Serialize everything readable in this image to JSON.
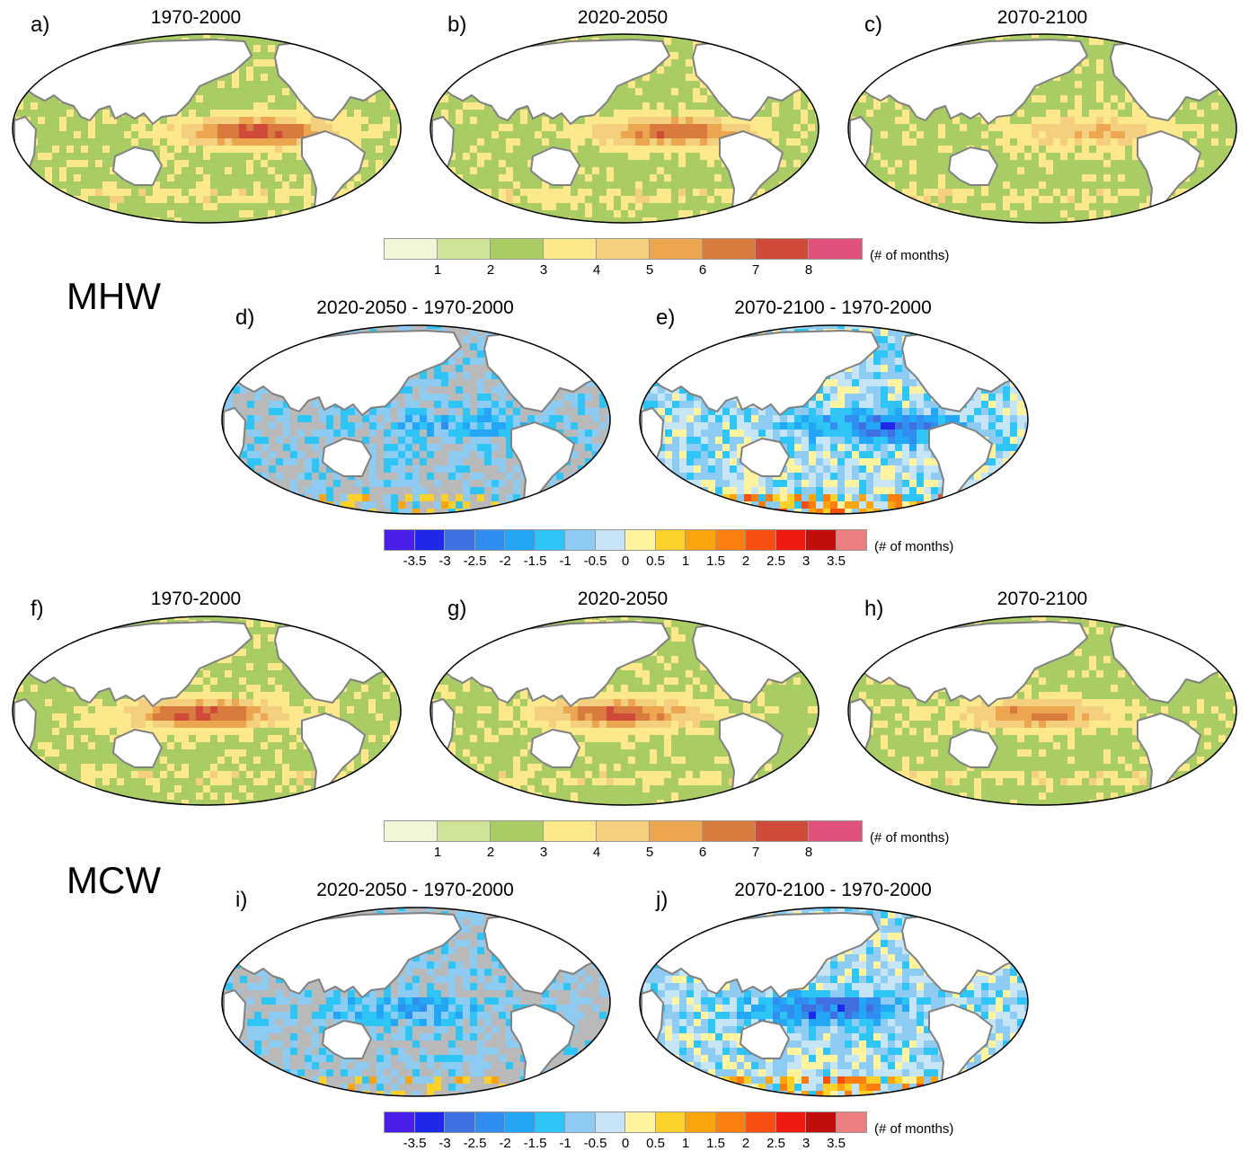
{
  "sections": {
    "mhw": "MHW",
    "mcw": "MCW"
  },
  "panels": [
    {
      "id": "a",
      "label": "a)",
      "title": "1970-2000",
      "type": "abs",
      "intensity": 1.0,
      "warm_pool": "east"
    },
    {
      "id": "b",
      "label": "b)",
      "title": "2020-2050",
      "type": "abs",
      "intensity": 0.9,
      "warm_pool": "east"
    },
    {
      "id": "c",
      "label": "c)",
      "title": "2070-2100",
      "type": "abs",
      "intensity": 0.55,
      "warm_pool": "east"
    },
    {
      "id": "d",
      "label": "d)",
      "title": "2020-2050 - 1970-2000",
      "type": "diff",
      "intensity": 0.4,
      "warm_pool": "east"
    },
    {
      "id": "e",
      "label": "e)",
      "title": "2070-2100 - 1970-2000",
      "type": "diff",
      "intensity": 1.0,
      "warm_pool": "east"
    },
    {
      "id": "f",
      "label": "f)",
      "title": "1970-2000",
      "type": "abs",
      "intensity": 1.0,
      "warm_pool": "central"
    },
    {
      "id": "g",
      "label": "g)",
      "title": "2020-2050",
      "type": "abs",
      "intensity": 0.95,
      "warm_pool": "central"
    },
    {
      "id": "h",
      "label": "h)",
      "title": "2070-2100",
      "type": "abs",
      "intensity": 0.75,
      "warm_pool": "central"
    },
    {
      "id": "i",
      "label": "i)",
      "title": "2020-2050 - 1970-2000",
      "type": "diff",
      "intensity": 0.5,
      "warm_pool": "central"
    },
    {
      "id": "j",
      "label": "j)",
      "title": "2070-2100 - 1970-2000",
      "type": "diff",
      "intensity": 1.0,
      "warm_pool": "central"
    }
  ],
  "colorbars": {
    "abs": {
      "colors": [
        "#f2f5d6",
        "#cfe39a",
        "#a9cc65",
        "#fde98b",
        "#f4cf7f",
        "#eca64f",
        "#d97a3e",
        "#d04a3a",
        "#e0507a"
      ],
      "ticks": [
        "1",
        "2",
        "3",
        "4",
        "5",
        "6",
        "7",
        "8"
      ],
      "unit": "(# of months)"
    },
    "diff": {
      "colors": [
        "#4a1ee8",
        "#1f28e8",
        "#3f6fe0",
        "#2f8ef0",
        "#22a6f5",
        "#2fc4f6",
        "#8dcbf2",
        "#c5e5f7",
        "#fff3a0",
        "#fcd12a",
        "#fca40b",
        "#fc7e0f",
        "#f84e10",
        "#f01b10",
        "#c20d0d",
        "#ee7f80"
      ],
      "ticks": [
        "-3.5",
        "-3",
        "-2.5",
        "-2",
        "-1.5",
        "-1",
        "-0.5",
        "0",
        "0.5",
        "1",
        "1.5",
        "2",
        "2.5",
        "3",
        "3.5"
      ],
      "unit": "(# of months)"
    }
  }
}
